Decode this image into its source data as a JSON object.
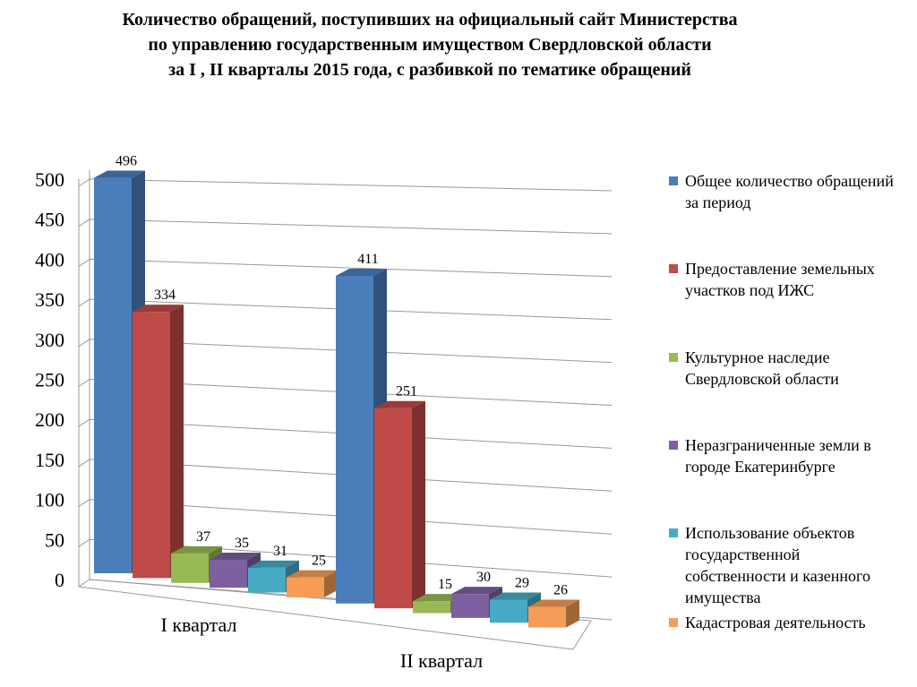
{
  "chart_data": {
    "type": "bar3d",
    "title": "Количество обращений, поступивших на официальный сайт Министерства\nпо управлению государственным имуществом Свердловской области\nза  I , II кварталы 2015 года, с разбивкой по тематике  обращений",
    "categories": [
      "I квартал",
      "II квартал"
    ],
    "series": [
      {
        "name": "Общее количество обращений за период",
        "color": "#4a7ebb",
        "values": [
          496,
          411
        ]
      },
      {
        "name": "Предоставление земельных участков под ИЖС",
        "color": "#be4b48",
        "values": [
          334,
          251
        ]
      },
      {
        "name": "Культурное наследие Свердловской области",
        "color": "#98b954",
        "values": [
          37,
          15
        ]
      },
      {
        "name": "Неразграниченные земли в городе Екатеринбурге",
        "color": "#7d60a0",
        "values": [
          35,
          30
        ]
      },
      {
        "name": "Использование объектов государственной собственности и казенного имущества",
        "color": "#46aac5",
        "values": [
          31,
          29
        ]
      },
      {
        "name": "Кадастровая деятельность",
        "color": "#f59d56",
        "values": [
          25,
          26
        ]
      }
    ],
    "ylim": [
      0,
      500
    ],
    "yticks": [
      0,
      50,
      100,
      150,
      200,
      250,
      300,
      350,
      400,
      450,
      500
    ],
    "grid": true
  }
}
